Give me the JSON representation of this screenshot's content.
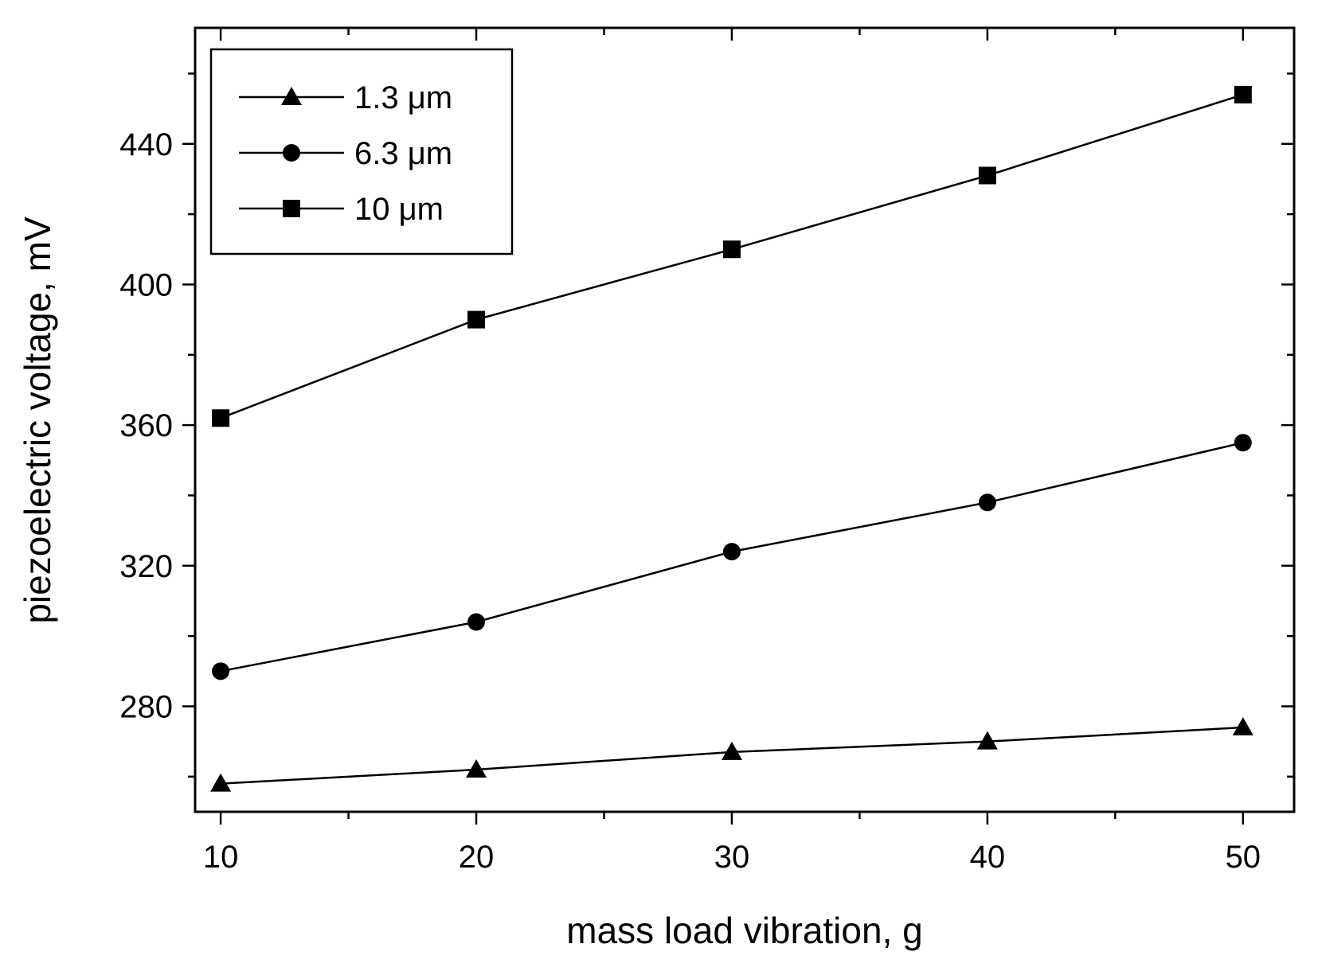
{
  "chart_data": {
    "type": "line",
    "title": "",
    "xlabel": "mass load vibration, g",
    "ylabel": "piezoelectric voltage, mV",
    "xlim": [
      9,
      52
    ],
    "ylim": [
      250,
      473
    ],
    "x_ticks": [
      10,
      20,
      30,
      40,
      50
    ],
    "y_ticks": [
      280,
      320,
      360,
      400,
      440
    ],
    "legend_position": "top-left",
    "grid": false,
    "x": [
      10,
      20,
      30,
      40,
      50
    ],
    "series": [
      {
        "name": "1.3 μm",
        "marker": "triangle",
        "values": [
          258,
          262,
          267,
          270,
          274
        ]
      },
      {
        "name": "6.3 μm",
        "marker": "circle",
        "values": [
          290,
          304,
          324,
          338,
          355
        ]
      },
      {
        "name": "10 μm",
        "marker": "square",
        "values": [
          362,
          390,
          410,
          431,
          454
        ]
      }
    ]
  }
}
